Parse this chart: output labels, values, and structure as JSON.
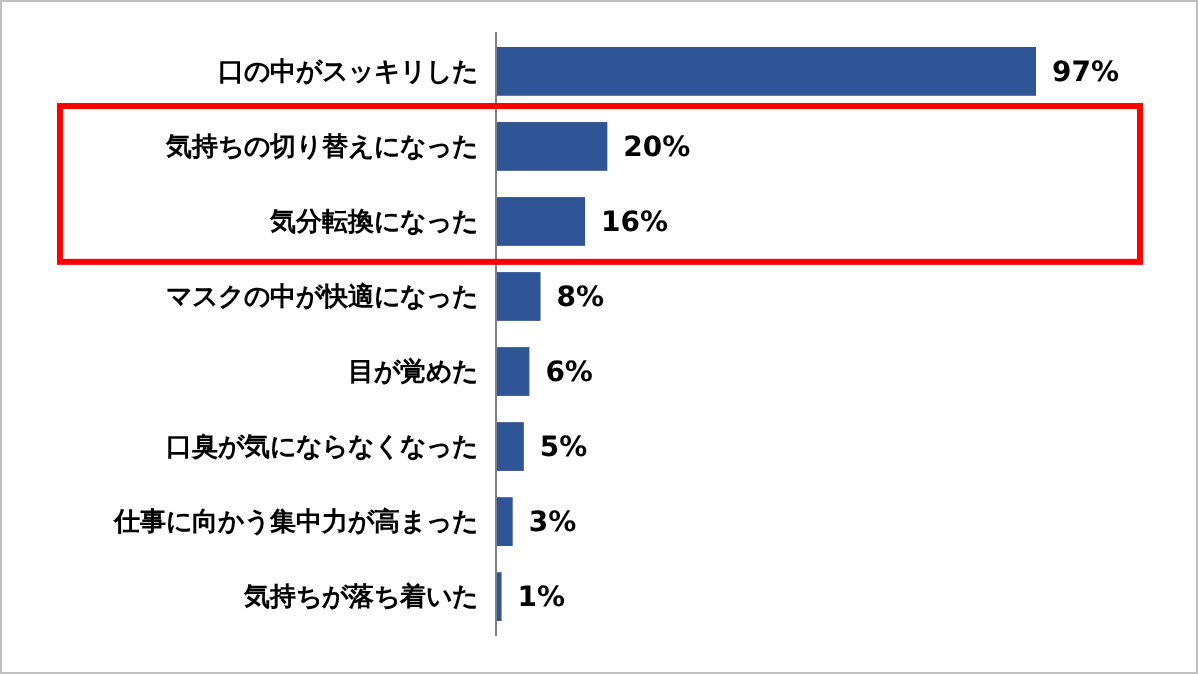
{
  "chart_data": {
    "type": "bar",
    "orientation": "horizontal",
    "categories": [
      "口の中がスッキリした",
      "気持ちの切り替えになった",
      "気分転換になった",
      "マスクの中が快適になった",
      "目が覚めた",
      "口臭が気にならなくなった",
      "仕事に向かう集中力が高まった",
      "気持ちが落ち着いた"
    ],
    "values": [
      97,
      20,
      16,
      8,
      6,
      5,
      3,
      1
    ],
    "value_labels": [
      "97%",
      "20%",
      "16%",
      "8%",
      "6%",
      "5%",
      "3%",
      "1%"
    ],
    "color": "#2f5597",
    "tick_labels": "y"
  }
}
